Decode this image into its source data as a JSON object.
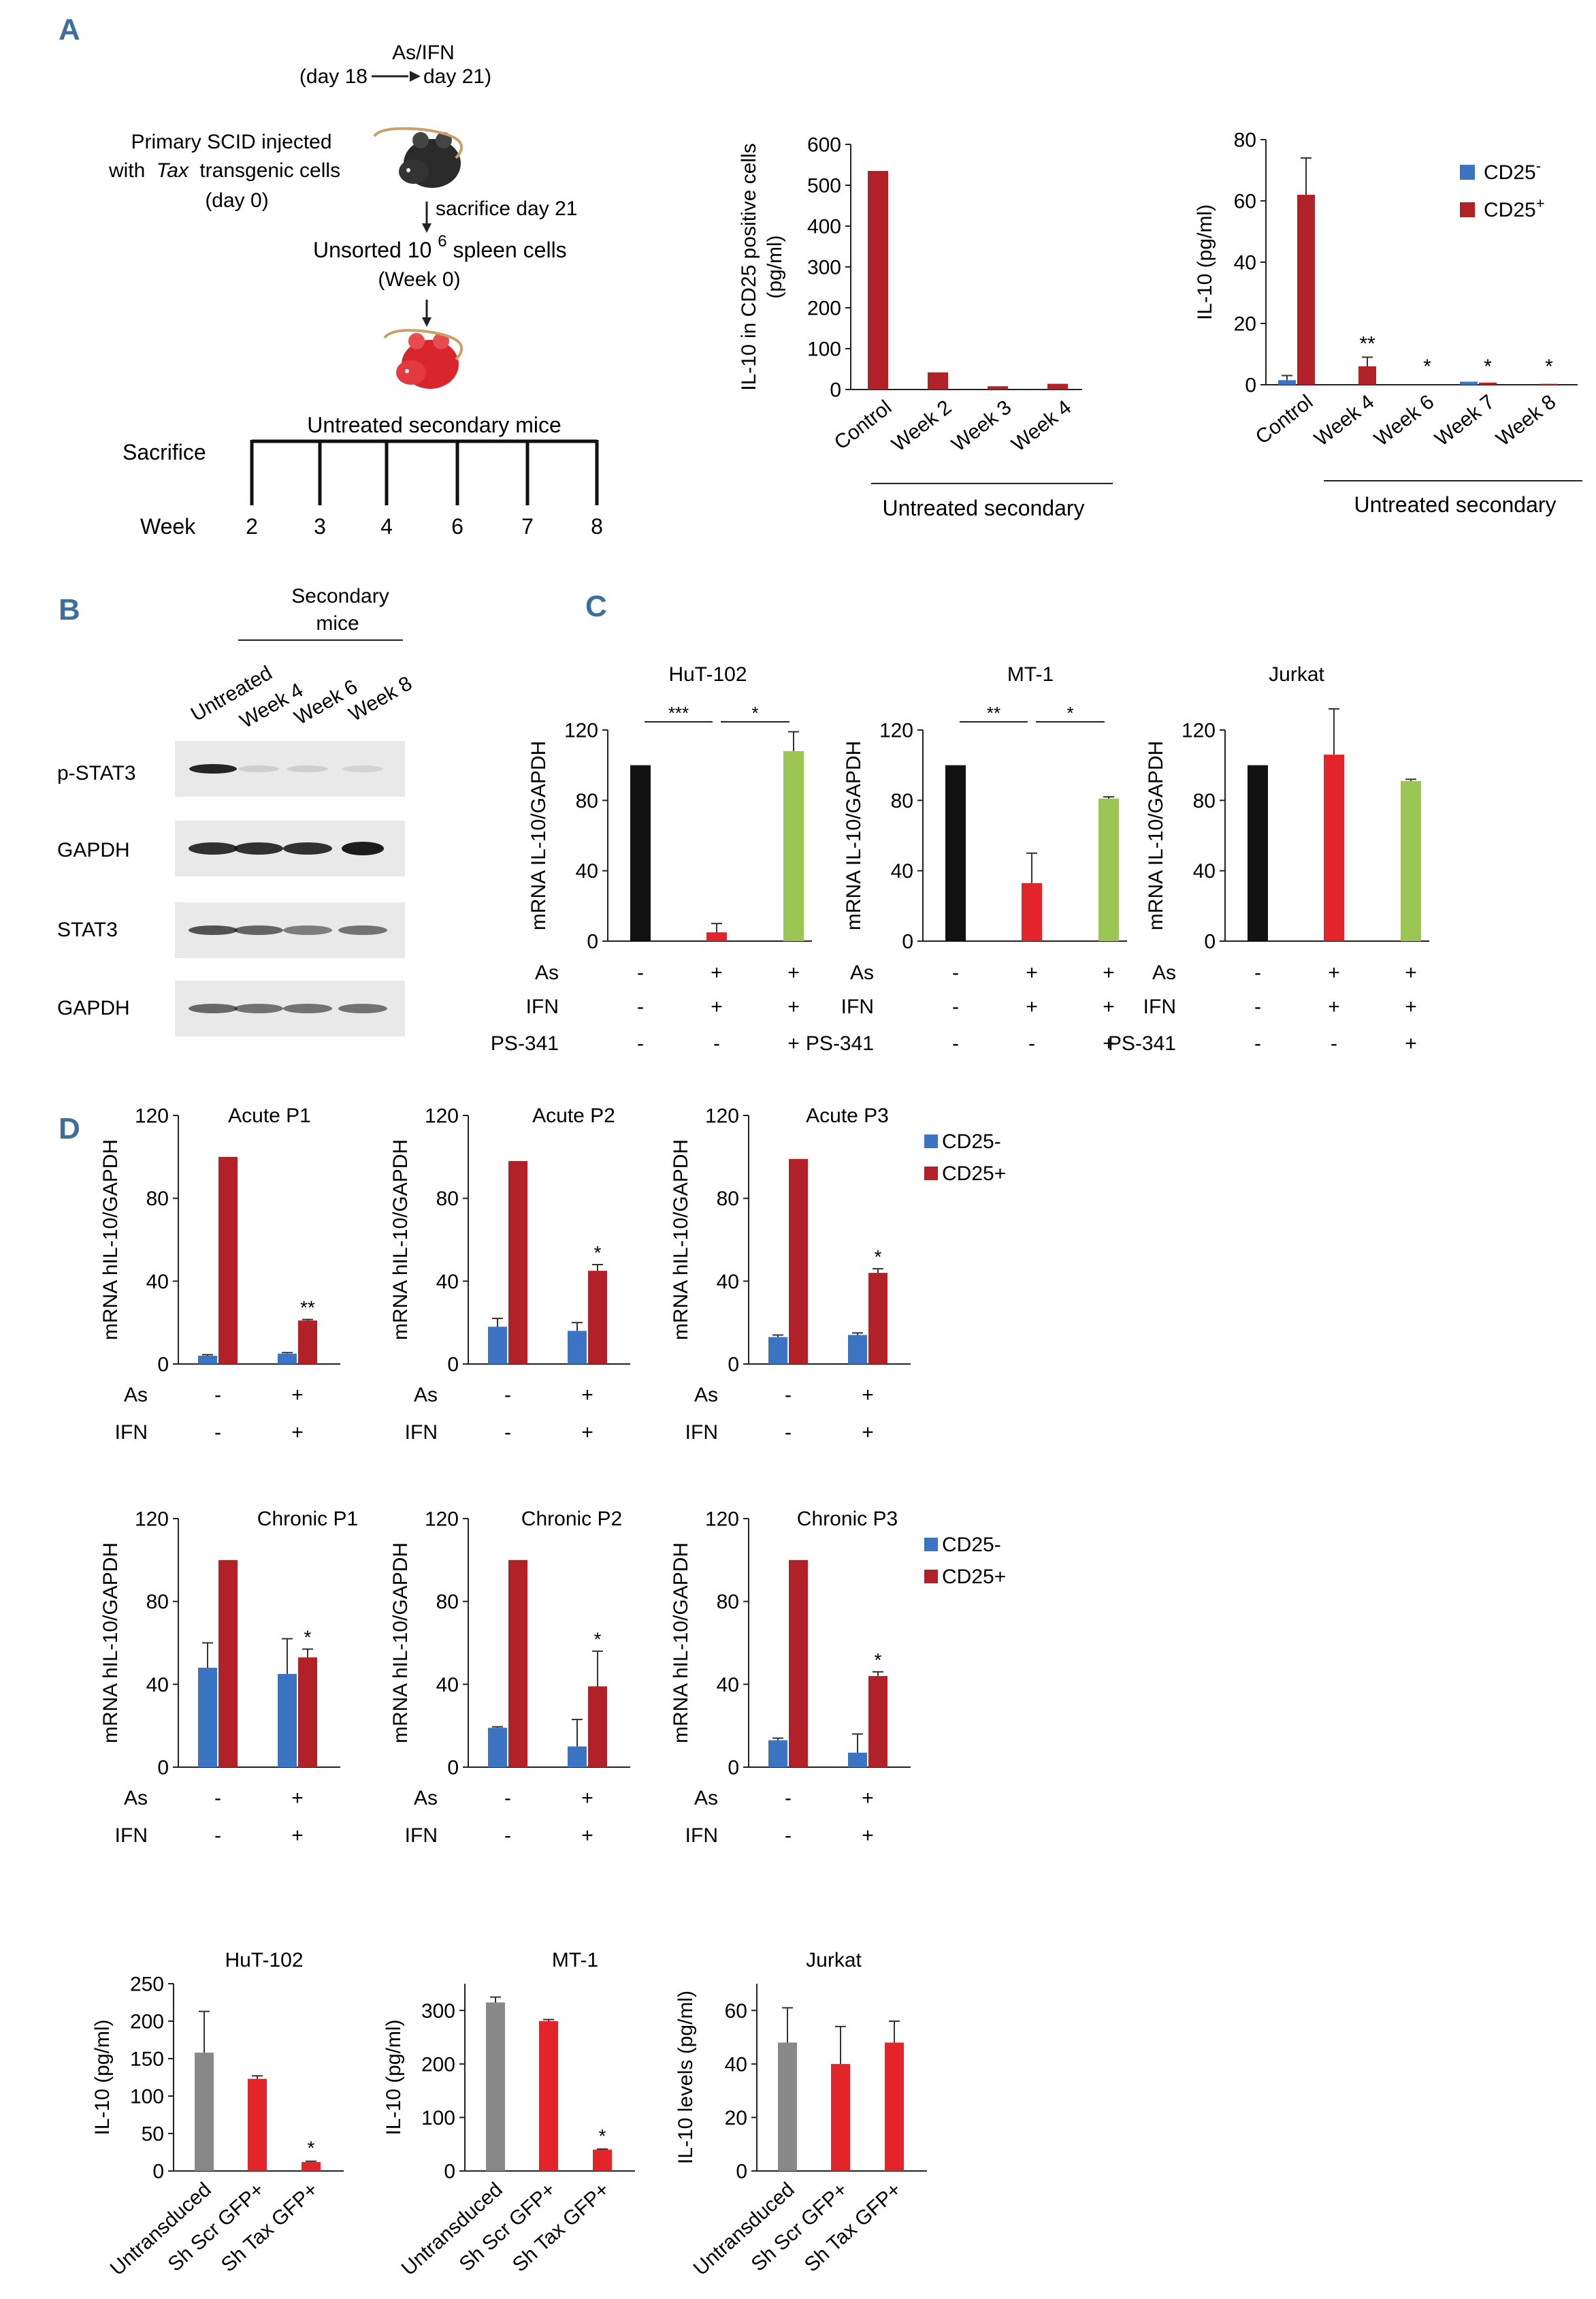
{
  "panel_labels": {
    "a": "A",
    "b": "B",
    "c": "C",
    "d": "D"
  },
  "schematic": {
    "treatment_line1": "As/IFN",
    "treatment_line2a": "(day 18",
    "treatment_line2b": "day 21)",
    "injected_line1": "Primary SCID injected",
    "injected_line2a": "with",
    "injected_line2b": "Tax",
    "injected_line2c": "transgenic cells",
    "injected_line3": "(day 0)",
    "sacrifice_text": "sacrifice day 21",
    "unsorted_a": "Unsorted 10",
    "unsorted_sup": "6",
    "unsorted_b": " spleen cells",
    "week0": "(Week 0)",
    "untreated_label": "Untreated secondary mice",
    "sacrifice_label": "Sacrifice",
    "week_label": "Week",
    "weeks": [
      "2",
      "3",
      "4",
      "6",
      "7",
      "8"
    ]
  },
  "blot": {
    "header_line1": "Secondary",
    "header_line2": "mice",
    "lanes": [
      "Untreated",
      "Week 4",
      "Week 6",
      "Week 8"
    ],
    "rows": [
      "p-STAT3",
      "GAPDH",
      "STAT3",
      "GAPDH"
    ]
  },
  "treat_rows": {
    "as": "As",
    "ifn": "IFN",
    "ps": "PS-341",
    "plus": "+",
    "minus": "-"
  },
  "legend": {
    "cd25_neg": "CD25-",
    "cd25_pos": "CD25+",
    "cd25_neg_base": "CD25",
    "cd25_neg_sup": "-",
    "cd25_pos_base": "CD25",
    "cd25_pos_sup": "+"
  },
  "colors": {
    "dark_red": "#b22128",
    "red": "#e3242b",
    "blue": "#3a74c2",
    "black": "#111111",
    "green": "#9bc654",
    "gray": "#888888"
  },
  "chart_data": [
    {
      "id": "a1",
      "type": "bar",
      "ylabel_line1": "IL-10 in CD25 positive cells",
      "ylabel_line2": "(pg/ml)",
      "ylim": [
        0,
        600
      ],
      "yticks": [
        "0",
        "100",
        "200",
        "300",
        "400",
        "500",
        "600"
      ],
      "categories": [
        "Control",
        "Week 2",
        "Week 3",
        "Week 4"
      ],
      "values": [
        535,
        42,
        8,
        14
      ],
      "group_label": "Untreated secondary"
    },
    {
      "id": "a2",
      "type": "bar",
      "ylabel": "IL-10  (pg/ml)",
      "ylim": [
        0,
        80
      ],
      "yticks": [
        "0",
        "20",
        "40",
        "60",
        "80"
      ],
      "categories": [
        "Control",
        "Week 4",
        "Week 6",
        "Week 7",
        "Week 8"
      ],
      "series": [
        {
          "name": "CD25-",
          "values": [
            1.5,
            0,
            0,
            1,
            0
          ],
          "errors": [
            1.5,
            0,
            0,
            0,
            0
          ]
        },
        {
          "name": "CD25+",
          "values": [
            62,
            6,
            0,
            0.7,
            0.3
          ],
          "errors": [
            12,
            3,
            0,
            0,
            0
          ]
        }
      ],
      "significance": [
        "",
        "**",
        "*",
        "*",
        "*"
      ],
      "group_label": "Untreated secondary",
      "legend": "top-right"
    },
    {
      "id": "c1",
      "type": "bar",
      "title": "HuT-102",
      "ylabel": "mRNA IL-10/GAPDH",
      "ylim": [
        0,
        120
      ],
      "yticks": [
        "0",
        "40",
        "80",
        "120"
      ],
      "values": [
        100,
        5,
        108
      ],
      "errors": [
        0,
        5,
        11
      ],
      "brackets": [
        {
          "from": 0,
          "to": 1,
          "label": "***"
        },
        {
          "from": 1,
          "to": 2,
          "label": "*"
        }
      ],
      "as": [
        "-",
        "+",
        "+"
      ],
      "ifn": [
        "-",
        "+",
        "+"
      ],
      "ps": [
        "-",
        "-",
        "+"
      ]
    },
    {
      "id": "c2",
      "type": "bar",
      "title": "MT-1",
      "ylabel": "mRNA IL-10/GAPDH",
      "ylim": [
        0,
        120
      ],
      "yticks": [
        "0",
        "40",
        "80",
        "120"
      ],
      "values": [
        100,
        33,
        81
      ],
      "errors": [
        0,
        17,
        1
      ],
      "brackets": [
        {
          "from": 0,
          "to": 1,
          "label": "**"
        },
        {
          "from": 1,
          "to": 2,
          "label": "*"
        }
      ],
      "as": [
        "-",
        "+",
        "+"
      ],
      "ifn": [
        "-",
        "+",
        "+"
      ],
      "ps": [
        "-",
        "-",
        "+"
      ]
    },
    {
      "id": "c3",
      "type": "bar",
      "title": "Jurkat",
      "ylabel": "mRNA IL-10/GAPDH",
      "ylim": [
        0,
        120
      ],
      "yticks": [
        "0",
        "40",
        "80",
        "120"
      ],
      "values": [
        100,
        106,
        91
      ],
      "errors": [
        0,
        26,
        1
      ],
      "brackets": [],
      "as": [
        "-",
        "+",
        "+"
      ],
      "ifn": [
        "-",
        "+",
        "+"
      ],
      "ps": [
        "-",
        "-",
        "+"
      ]
    },
    {
      "id": "d1",
      "type": "bar",
      "title": "Acute P1",
      "ylabel": "mRNA hIL-10/GAPDH",
      "ylim": [
        0,
        120
      ],
      "yticks": [
        "0",
        "40",
        "80",
        "120"
      ],
      "series": [
        {
          "name": "CD25-",
          "values": [
            4,
            5
          ],
          "errors": [
            0.5,
            0.5
          ]
        },
        {
          "name": "CD25+",
          "values": [
            100,
            21
          ],
          "errors": [
            0,
            0.5
          ]
        }
      ],
      "significance": [
        "",
        "**"
      ],
      "as": [
        "-",
        "+"
      ],
      "ifn": [
        "-",
        "+"
      ]
    },
    {
      "id": "d2",
      "type": "bar",
      "title": "Acute P2",
      "ylabel": "mRNA hIL-10/GAPDH",
      "ylim": [
        0,
        120
      ],
      "yticks": [
        "0",
        "40",
        "80",
        "120"
      ],
      "series": [
        {
          "name": "CD25-",
          "values": [
            18,
            16
          ],
          "errors": [
            4,
            4
          ]
        },
        {
          "name": "CD25+",
          "values": [
            98,
            45
          ],
          "errors": [
            0,
            3
          ]
        }
      ],
      "significance": [
        "",
        "*"
      ],
      "as": [
        "-",
        "+"
      ],
      "ifn": [
        "-",
        "+"
      ]
    },
    {
      "id": "d3",
      "type": "bar",
      "title": "Acute P3",
      "ylabel": "mRNA hIL-10/GAPDH",
      "ylim": [
        0,
        120
      ],
      "yticks": [
        "0",
        "40",
        "80",
        "120"
      ],
      "series": [
        {
          "name": "CD25-",
          "values": [
            13,
            14
          ],
          "errors": [
            1,
            1
          ]
        },
        {
          "name": "CD25+",
          "values": [
            99,
            44
          ],
          "errors": [
            0,
            2
          ]
        }
      ],
      "significance": [
        "",
        "*"
      ],
      "as": [
        "-",
        "+"
      ],
      "ifn": [
        "-",
        "+"
      ],
      "legend": "top-right"
    },
    {
      "id": "d4",
      "type": "bar",
      "title": "Chronic P1",
      "ylabel": "mRNA hIL-10/GAPDH",
      "ylim": [
        0,
        120
      ],
      "yticks": [
        "0",
        "40",
        "80",
        "120"
      ],
      "series": [
        {
          "name": "CD25-",
          "values": [
            48,
            45
          ],
          "errors": [
            12,
            17
          ]
        },
        {
          "name": "CD25+",
          "values": [
            100,
            53
          ],
          "errors": [
            0,
            4
          ]
        }
      ],
      "significance": [
        "",
        "*"
      ],
      "as": [
        "-",
        "+"
      ],
      "ifn": [
        "-",
        "+"
      ]
    },
    {
      "id": "d5",
      "type": "bar",
      "title": "Chronic P2",
      "ylabel": "mRNA hIL-10/GAPDH",
      "ylim": [
        0,
        120
      ],
      "yticks": [
        "0",
        "40",
        "80",
        "120"
      ],
      "series": [
        {
          "name": "CD25-",
          "values": [
            19,
            10
          ],
          "errors": [
            0.5,
            13
          ]
        },
        {
          "name": "CD25+",
          "values": [
            100,
            39
          ],
          "errors": [
            0,
            17
          ]
        }
      ],
      "significance": [
        "",
        "*"
      ],
      "as": [
        "-",
        "+"
      ],
      "ifn": [
        "-",
        "+"
      ]
    },
    {
      "id": "d6",
      "type": "bar",
      "title": "Chronic P3",
      "ylabel": "mRNA hIL-10/GAPDH",
      "ylim": [
        0,
        120
      ],
      "yticks": [
        "0",
        "40",
        "80",
        "120"
      ],
      "series": [
        {
          "name": "CD25-",
          "values": [
            13,
            7
          ],
          "errors": [
            1,
            9
          ]
        },
        {
          "name": "CD25+",
          "values": [
            100,
            44
          ],
          "errors": [
            0,
            2
          ]
        }
      ],
      "significance": [
        "",
        "*"
      ],
      "as": [
        "-",
        "+"
      ],
      "ifn": [
        "-",
        "+"
      ],
      "legend": "top-right"
    },
    {
      "id": "e1",
      "type": "bar",
      "title": "HuT-102",
      "ylabel": "IL-10 (pg/ml)",
      "ylim": [
        0,
        250
      ],
      "yticks": [
        "0",
        "50",
        "100",
        "150",
        "200",
        "250"
      ],
      "categories": [
        "Untransduced",
        "Sh Scr GFP+",
        "Sh Tax GFP+"
      ],
      "values": [
        158,
        123,
        12
      ],
      "errors": [
        55,
        4,
        1
      ],
      "significance": [
        "",
        "",
        "*"
      ]
    },
    {
      "id": "e2",
      "type": "bar",
      "title": "MT-1",
      "ylabel": "IL-10 (pg/ml)",
      "ylim": [
        0,
        350
      ],
      "yticks": [
        "0",
        "100",
        "200",
        "300"
      ],
      "categories": [
        "Untransduced",
        "Sh Scr GFP+",
        "Sh Tax GFP+"
      ],
      "values": [
        315,
        280,
        40
      ],
      "errors": [
        10,
        3,
        1
      ],
      "significance": [
        "",
        "",
        "*"
      ]
    },
    {
      "id": "e3",
      "type": "bar",
      "title": "Jurkat",
      "ylabel": "IL-10  levels (pg/ml)",
      "ylim": [
        0,
        70
      ],
      "yticks": [
        "0",
        "20",
        "40",
        "60"
      ],
      "categories": [
        "Untransduced",
        "Sh Scr GFP+",
        "Sh Tax GFP+"
      ],
      "values": [
        48,
        40,
        48
      ],
      "errors": [
        13,
        14,
        8
      ],
      "significance": [
        "",
        "",
        ""
      ]
    }
  ]
}
